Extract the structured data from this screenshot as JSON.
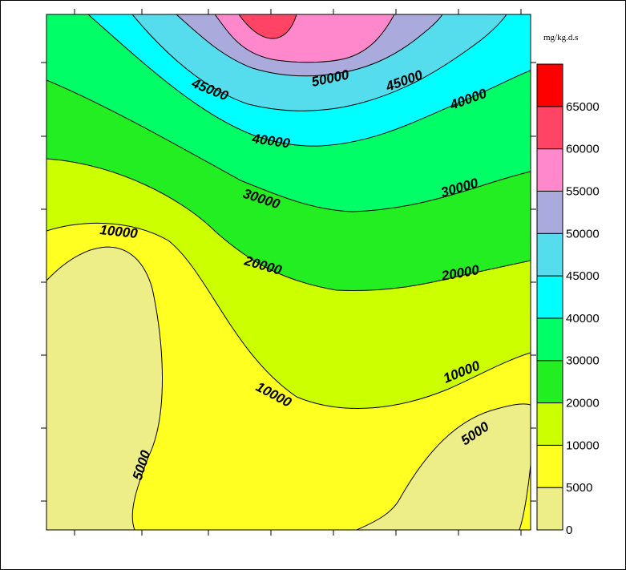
{
  "chart_data": {
    "type": "heatmap",
    "title": "",
    "units_label": "mg/kg.d.s",
    "colorbar": {
      "levels": [
        0,
        5000,
        10000,
        20000,
        30000,
        40000,
        45000,
        50000,
        55000,
        60000,
        65000
      ],
      "tick_labels": [
        "0",
        "5000",
        "10000",
        "20000",
        "30000",
        "40000",
        "45000",
        "50000",
        "55000",
        "60000",
        "65000"
      ],
      "colors": [
        "#eeee88",
        "#ffff22",
        "#ccff00",
        "#22ee22",
        "#00ff66",
        "#00ffff",
        "#55ddee",
        "#aaaadd",
        "#ff88cc",
        "#ff4466",
        "#ff0000"
      ]
    },
    "contour_labels": [
      {
        "text": "45000",
        "level": 45000
      },
      {
        "text": "50000",
        "level": 50000
      },
      {
        "text": "45000",
        "level": 45000
      },
      {
        "text": "40000",
        "level": 40000
      },
      {
        "text": "40000",
        "level": 40000
      },
      {
        "text": "30000",
        "level": 30000
      },
      {
        "text": "30000",
        "level": 30000
      },
      {
        "text": "10000",
        "level": 10000
      },
      {
        "text": "20000",
        "level": 20000
      },
      {
        "text": "20000",
        "level": 20000
      },
      {
        "text": "10000",
        "level": 10000
      },
      {
        "text": "10000",
        "level": 10000
      },
      {
        "text": "5000",
        "level": 5000
      },
      {
        "text": "5000",
        "level": 5000
      }
    ],
    "grid": false,
    "legend_position": "right"
  }
}
